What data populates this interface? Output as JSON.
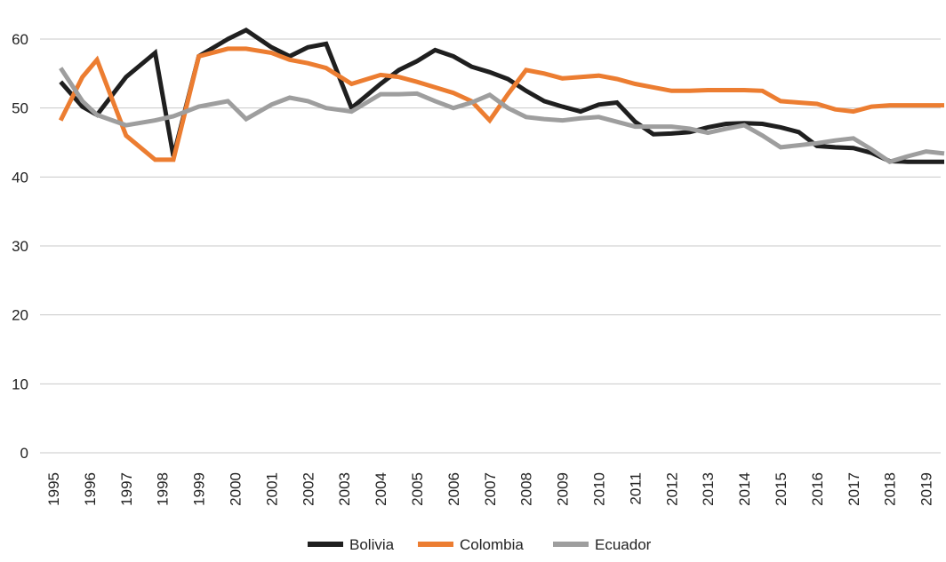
{
  "chart_data": {
    "type": "line",
    "title": "",
    "xlabel": "",
    "ylabel": "",
    "ylim": [
      0,
      60
    ],
    "y_ticks": [
      0,
      10,
      20,
      30,
      40,
      50,
      60
    ],
    "x_ticks": [
      "1995",
      "1996",
      "1997",
      "1998",
      "1999",
      "2000",
      "2001",
      "2002",
      "2003",
      "2004",
      "2005",
      "2006",
      "2007",
      "2008",
      "2009",
      "2010",
      "2011",
      "2012",
      "2013",
      "2014",
      "2015",
      "2016",
      "2017",
      "2018",
      "2019"
    ],
    "grid": "horizontal",
    "legend_position": "bottom",
    "x": [
      1995.2,
      1995.8,
      1996.2,
      1997.0,
      1997.8,
      1998.3,
      1999.0,
      1999.8,
      2000.3,
      2001.0,
      2001.5,
      2002.0,
      2002.5,
      2003.2,
      2004.0,
      2004.5,
      2005.0,
      2005.5,
      2006.0,
      2006.5,
      2007.0,
      2007.5,
      2008.0,
      2008.5,
      2009.0,
      2009.5,
      2010.0,
      2010.5,
      2011.0,
      2011.5,
      2012.0,
      2012.5,
      2013.0,
      2013.5,
      2014.0,
      2014.5,
      2015.0,
      2015.5,
      2016.0,
      2016.5,
      2017.0,
      2017.5,
      2018.0,
      2018.5,
      2019.0,
      2019.5
    ],
    "series": [
      {
        "name": "Bolivia",
        "color": "#1f1f1f",
        "values": [
          53.8,
          50.2,
          49.0,
          54.5,
          58.0,
          43.0,
          57.5,
          60.0,
          61.3,
          58.8,
          57.5,
          58.8,
          59.3,
          50.0,
          53.5,
          55.5,
          56.8,
          58.4,
          57.5,
          56.0,
          55.2,
          54.2,
          52.5,
          51.0,
          50.2,
          49.5,
          50.5,
          50.8,
          48.0,
          46.2,
          46.3,
          46.5,
          47.2,
          47.7,
          47.8,
          47.7,
          47.2,
          46.5,
          44.5,
          44.3,
          44.2,
          43.5,
          42.3,
          42.2,
          42.2,
          42.2
        ]
      },
      {
        "name": "Colombia",
        "color": "#ec7d31",
        "values": [
          48.2,
          54.5,
          57.0,
          46.0,
          42.5,
          42.5,
          57.5,
          58.6,
          58.6,
          58.0,
          57.0,
          56.5,
          55.8,
          53.5,
          54.8,
          54.5,
          53.8,
          53.0,
          52.2,
          51.0,
          48.2,
          52.0,
          55.5,
          55.0,
          54.3,
          54.5,
          54.7,
          54.2,
          53.5,
          53.0,
          52.5,
          52.5,
          52.6,
          52.6,
          52.6,
          52.5,
          51.0,
          50.8,
          50.6,
          49.8,
          49.5,
          50.2,
          50.4,
          50.4,
          50.4,
          50.4
        ]
      },
      {
        "name": "Ecuador",
        "color": "#9e9e9e",
        "values": [
          55.8,
          51.0,
          49.0,
          47.5,
          48.2,
          48.8,
          50.2,
          51.0,
          48.4,
          50.5,
          51.5,
          51.0,
          50.0,
          49.5,
          52.0,
          52.0,
          52.1,
          51.0,
          50.0,
          50.8,
          51.9,
          50.0,
          48.7,
          48.4,
          48.2,
          48.5,
          48.7,
          48.0,
          47.3,
          47.3,
          47.3,
          47.0,
          46.4,
          47.0,
          47.5,
          46.0,
          44.3,
          44.6,
          44.9,
          45.3,
          45.6,
          44.0,
          42.2,
          43.0,
          43.7,
          43.4
        ]
      }
    ]
  }
}
